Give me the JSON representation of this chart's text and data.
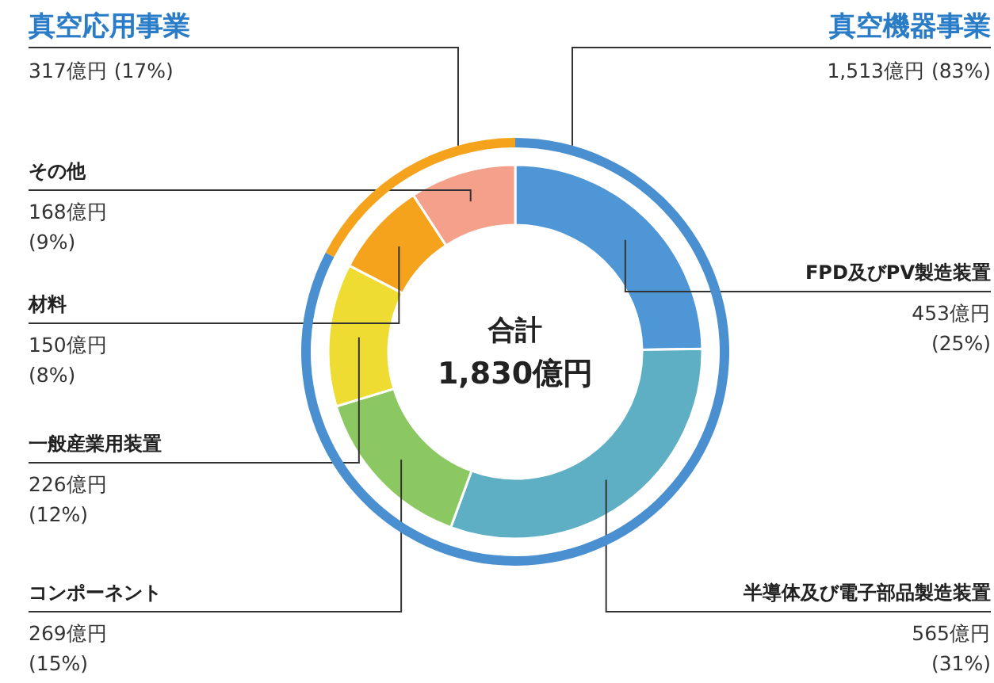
{
  "chart_data": [
    {
      "type": "donut",
      "categories": [
        "FPD及びPV製造装置",
        "半導体及び電子部品製造装置",
        "コンポーネント",
        "一般産業用装置",
        "材料",
        "その他"
      ],
      "values": [
        453,
        565,
        269,
        226,
        150,
        168
      ],
      "colors": [
        "#4e96d5",
        "#5eafc3",
        "#8bc862",
        "#efdc33",
        "#f5a31c",
        "#f4a08a"
      ],
      "value_labels": [
        "453億円 (25%)",
        "565億円 (31%)",
        "269億円 (15%)",
        "226億円 (12%)",
        "150億円 (8%)",
        "168億円 (9%)"
      ],
      "annotations": [
        "合計",
        "1,830億円"
      ]
    },
    {
      "type": "donut",
      "categories": [
        "真空機器事業",
        "真空応用事業"
      ],
      "values": [
        1513,
        317
      ],
      "colors": [
        "#4a90d0",
        "#f5a31c"
      ],
      "value_labels": [
        "1,513億円 (83%)",
        "317億円 (17%)"
      ]
    }
  ]
}
